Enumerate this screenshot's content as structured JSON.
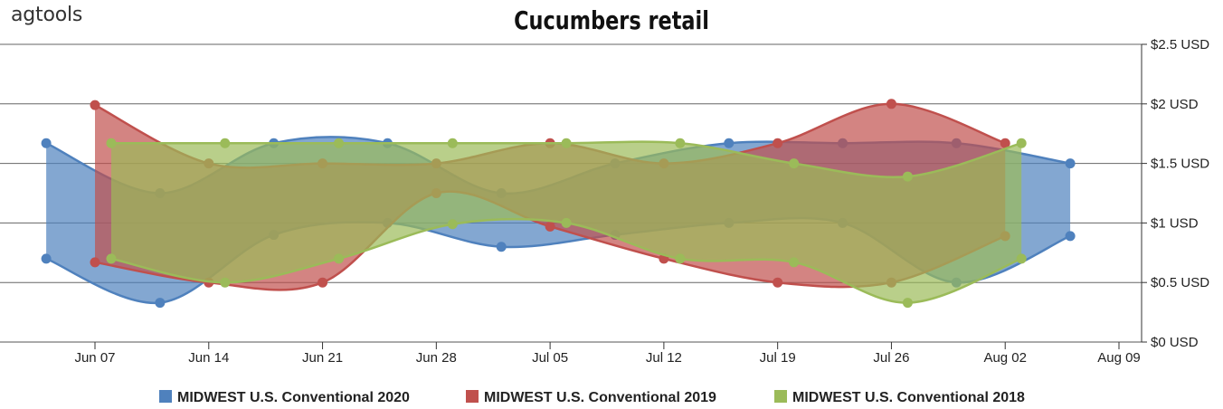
{
  "logo": "agtools",
  "chart_data": {
    "type": "area",
    "title": "Cucumbers retail",
    "y_axis": {
      "ticks": [
        0,
        0.5,
        1,
        1.5,
        2,
        2.5
      ],
      "tick_labels": [
        "$0 USD",
        "$0.5 USD",
        "$1 USD",
        "$1.5 USD",
        "$2 USD",
        "$2.5 USD"
      ],
      "range": [
        0,
        2.5
      ],
      "position": "right"
    },
    "x_axis": {
      "tick_labels": [
        "Jun 07",
        "Jun 14",
        "Jun 21",
        "Jun 28",
        "Jul 05",
        "Jul 12",
        "Jul 19",
        "Jul 26",
        "Aug 02",
        "Aug 09"
      ],
      "range": [
        "Jun 02",
        "Aug 10"
      ]
    },
    "grid": true,
    "legend_position": "bottom",
    "series": [
      {
        "name": "MIDWEST U.S.     Conventional 2020",
        "color": "#4f81bd",
        "dates": [
          "Jun 04",
          "Jun 11",
          "Jun 18",
          "Jun 25",
          "Jul 02",
          "Jul 09",
          "Jul 16",
          "Jul 23",
          "Jul 30",
          "Aug 06"
        ],
        "high": [
          1.67,
          1.25,
          1.67,
          1.67,
          1.25,
          1.5,
          1.67,
          1.67,
          1.67,
          1.5
        ],
        "low": [
          0.7,
          0.33,
          0.9,
          1.0,
          0.8,
          0.9,
          1.0,
          1.0,
          0.5,
          0.89
        ]
      },
      {
        "name": "MIDWEST U.S.     Conventional 2019",
        "color": "#c0504d",
        "dates": [
          "Jun 07",
          "Jun 14",
          "Jun 21",
          "Jun 28",
          "Jul 05",
          "Jul 12",
          "Jul 19",
          "Jul 26",
          "Aug 02"
        ],
        "high": [
          1.99,
          1.5,
          1.5,
          1.5,
          1.67,
          1.5,
          1.67,
          2.0,
          1.67
        ],
        "low": [
          0.67,
          0.5,
          0.5,
          1.25,
          0.97,
          0.7,
          0.5,
          0.5,
          0.89
        ]
      },
      {
        "name": "MIDWEST U.S.     Conventional 2018",
        "color": "#9bbb59",
        "dates": [
          "Jun 08",
          "Jun 15",
          "Jun 22",
          "Jun 29",
          "Jul 06",
          "Jul 13",
          "Jul 20",
          "Jul 27",
          "Aug 03"
        ],
        "high": [
          1.67,
          1.67,
          1.67,
          1.67,
          1.67,
          1.67,
          1.5,
          1.39,
          1.67
        ],
        "low": [
          0.7,
          0.5,
          0.7,
          0.99,
          1.0,
          0.7,
          0.67,
          0.33,
          0.7
        ]
      }
    ]
  }
}
